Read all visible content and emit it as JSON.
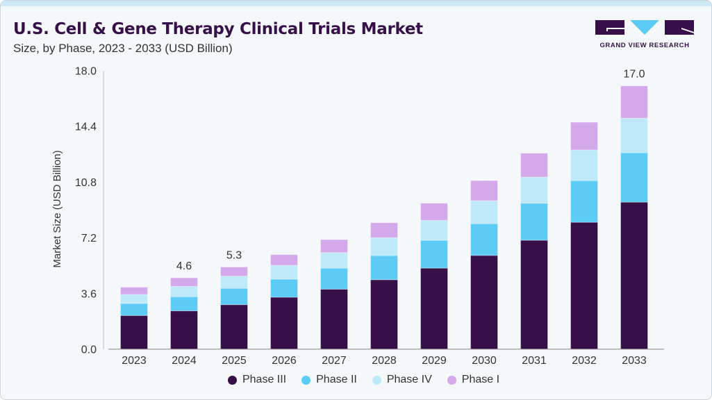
{
  "header": {
    "title": "U.S. Cell & Gene Therapy Clinical Trials Market",
    "subtitle": "Size, by Phase, 2023 - 2033 (USD Billion)",
    "logo_text": "GRAND VIEW RESEARCH"
  },
  "chart_data": {
    "type": "bar",
    "stacked": true,
    "title": "U.S. Cell & Gene Therapy Clinical Trials Market",
    "subtitle": "Size, by Phase, 2023 - 2033 (USD Billion)",
    "xlabel": "",
    "ylabel": "Market Size (USD Billion)",
    "ylim": [
      0,
      18
    ],
    "yticks": [
      "0.0",
      "3.6",
      "7.2",
      "10.8",
      "14.4",
      "18.0"
    ],
    "grid": false,
    "legend_position": "bottom",
    "categories": [
      "2023",
      "2024",
      "2025",
      "2026",
      "2027",
      "2028",
      "2029",
      "2030",
      "2031",
      "2032",
      "2033"
    ],
    "series": [
      {
        "name": "Phase III",
        "color": "#37104a",
        "values": [
          2.17,
          2.47,
          2.87,
          3.35,
          3.87,
          4.48,
          5.23,
          6.05,
          7.03,
          8.19,
          9.49
        ]
      },
      {
        "name": "Phase II",
        "color": "#5ccbf5",
        "values": [
          0.78,
          0.92,
          1.06,
          1.17,
          1.36,
          1.56,
          1.8,
          2.05,
          2.39,
          2.69,
          3.19
        ]
      },
      {
        "name": "Phase IV",
        "color": "#bde9f8",
        "values": [
          0.58,
          0.66,
          0.78,
          0.89,
          1.0,
          1.15,
          1.28,
          1.48,
          1.69,
          1.98,
          2.23
        ]
      },
      {
        "name": "Phase I",
        "color": "#d4a9ec",
        "values": [
          0.47,
          0.55,
          0.59,
          0.69,
          0.84,
          0.97,
          1.11,
          1.3,
          1.54,
          1.79,
          2.09
        ]
      }
    ],
    "data_labels": [
      {
        "category": "2024",
        "text": "4.6"
      },
      {
        "category": "2025",
        "text": "5.3"
      },
      {
        "category": "2033",
        "text": "17.0"
      }
    ]
  }
}
